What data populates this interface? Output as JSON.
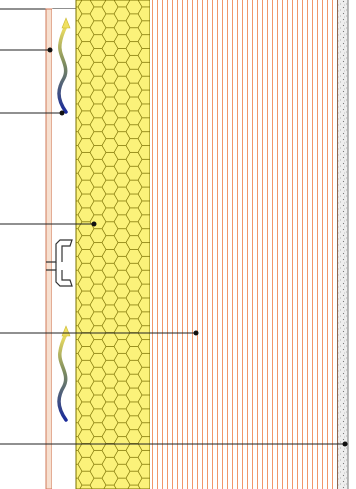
{
  "diagram": {
    "type": "ventilated-facade-wall-section",
    "layers": [
      {
        "name": "cladding-panel",
        "fill": "#f7e0d0",
        "stroke": "#d27a5a"
      },
      {
        "name": "ventilated-air-gap",
        "fill": "#ffffff"
      },
      {
        "name": "thermal-insulation",
        "fill": "#fbf27a",
        "pattern": "hexagon",
        "pattern_stroke": "#7a7000"
      },
      {
        "name": "brick-masonry",
        "fill": "#ffffff",
        "pattern": "vertical-hatch",
        "pattern_stroke": "#f08a5a"
      },
      {
        "name": "interior-plaster",
        "fill": "#eeeeee",
        "pattern": "stipple"
      }
    ],
    "airflow_arrows": [
      {
        "name": "airflow-arrow-upper",
        "gradient": [
          "#f0e060",
          "#1a2a9a"
        ]
      },
      {
        "name": "airflow-arrow-lower",
        "gradient": [
          "#f0e060",
          "#1a2a9a"
        ]
      }
    ],
    "bracket": {
      "name": "fixing-bracket",
      "color": "#333333"
    },
    "leaders": [
      {
        "name": "leader-cladding",
        "target": "cladding-panel"
      },
      {
        "name": "leader-air-gap",
        "target": "ventilated-air-gap"
      },
      {
        "name": "leader-insulation",
        "target": "thermal-insulation"
      },
      {
        "name": "leader-masonry",
        "target": "brick-masonry"
      },
      {
        "name": "leader-plaster",
        "target": "interior-plaster"
      }
    ],
    "line_color": "#222222"
  }
}
